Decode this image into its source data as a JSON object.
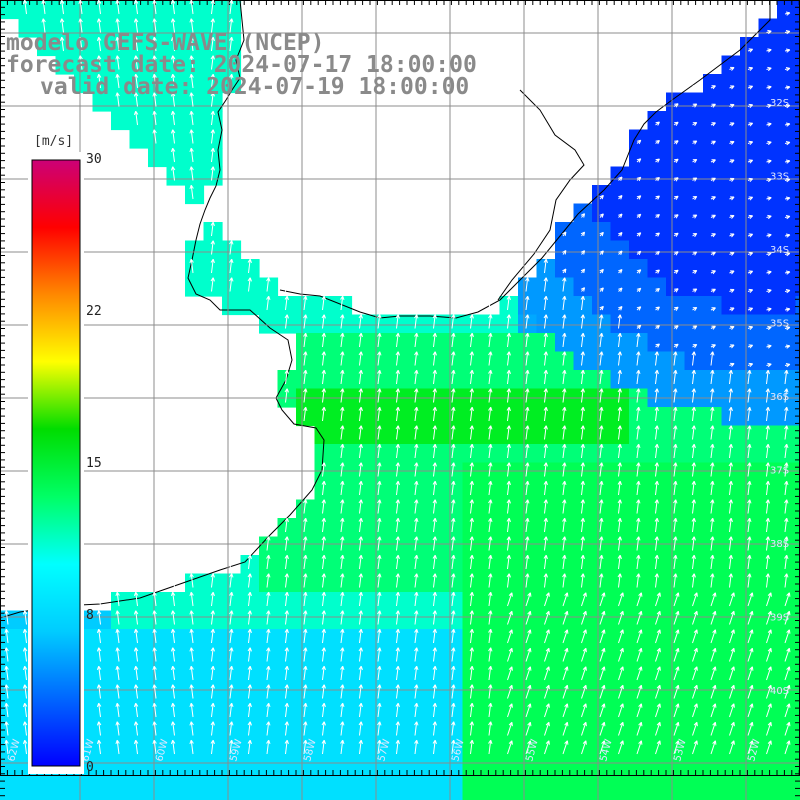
{
  "title": {
    "model": "modelo GEFS-WAVE (NCEP)",
    "forecast": "forecast date: 2024-07-17 18:00:00",
    "valid": "valid date: 2024-07-19 18:00:00"
  },
  "colorbar": {
    "unit": "[m/s]",
    "ticks": [
      "30",
      "22",
      "15",
      "8",
      "0"
    ],
    "colors": [
      "#0000ff",
      "#0066ff",
      "#00ccff",
      "#00ffff",
      "#00ff66",
      "#00dd00",
      "#ffff00",
      "#ff8800",
      "#ff0000",
      "#cc0077"
    ]
  },
  "right_lat_labels": [
    "32S",
    "33S",
    "34S",
    "35S",
    "36S",
    "37S",
    "38S",
    "39S",
    "40S"
  ],
  "bottom_lon_labels": [
    "62W",
    "61W",
    "60W",
    "59W",
    "58W",
    "57W",
    "56W",
    "55W",
    "54W",
    "53W",
    "52W"
  ],
  "colors": {
    "ocean_high": "#00ff66",
    "ocean_mid": "#00ffaa",
    "ocean_low": "#00d8ff",
    "ocean_very_low": "#0033ff",
    "land": "#ffffff",
    "grid": "#888888",
    "coast": "#000000"
  }
}
